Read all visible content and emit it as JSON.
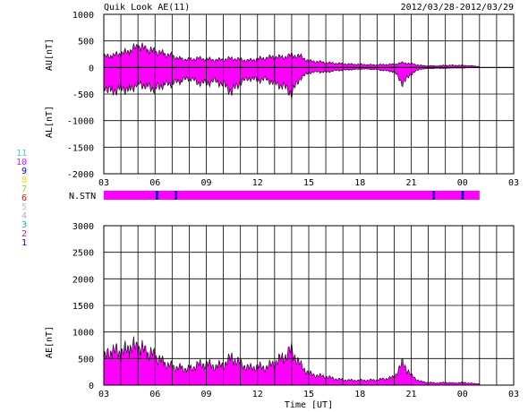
{
  "header": {
    "title": "Quik Look AE(11)",
    "date_range": "2012/03/28-2012/03/29"
  },
  "station_legend": [
    {
      "label": "11",
      "color": "#00e5ff"
    },
    {
      "label": "10",
      "color": "#ff00ff"
    },
    {
      "label": "9",
      "color": "#0000ff"
    },
    {
      "label": "8",
      "color": "#ffd700"
    },
    {
      "label": "7",
      "color": "#9acd32"
    },
    {
      "label": "6",
      "color": "#ff0000"
    },
    {
      "label": "5",
      "color": "#c0c0c0"
    },
    {
      "label": "4",
      "color": "#b0b0b0"
    },
    {
      "label": "3",
      "color": "#20b2aa"
    },
    {
      "label": "2",
      "color": "#c71585"
    },
    {
      "label": "1",
      "color": "#0000cd"
    }
  ],
  "colors": {
    "fill": "#ff00ff",
    "outline": "#000000",
    "stn_dark": "#0000cc",
    "grid": "#000000"
  },
  "chart_data": [
    {
      "type": "area",
      "panel": "AU/AL",
      "ylabel_top": "AU[nT]",
      "ylabel_bottom": "AL[nT]",
      "ylim": [
        -2000,
        1000
      ],
      "yticks": [
        "1000",
        "500",
        "0",
        "-500",
        "-1000",
        "-1500",
        "-2000"
      ],
      "xticks": [
        "03",
        "06",
        "09",
        "12",
        "15",
        "18",
        "21",
        "00",
        "03"
      ],
      "xlim_hours": [
        3,
        27
      ],
      "grid": true,
      "series": [
        {
          "x": [
            3.0,
            3.5,
            4.0,
            4.5,
            5.0,
            5.5,
            6.0,
            6.5,
            7.0,
            7.5,
            8.0,
            8.5,
            9.0,
            9.5,
            10.0,
            10.5,
            11.0,
            11.5,
            12.0,
            12.5,
            13.0,
            13.5,
            14.0,
            14.5,
            15.0,
            15.5,
            16.0,
            16.5,
            17.0,
            17.5,
            18.0,
            18.5,
            19.0,
            19.5,
            20.0,
            20.5,
            21.0,
            21.5,
            22.0,
            22.5,
            23.0,
            23.5,
            24.0,
            24.5,
            25.0
          ],
          "values": [
            200,
            220,
            260,
            300,
            400,
            340,
            300,
            260,
            220,
            160,
            150,
            170,
            160,
            140,
            150,
            170,
            150,
            130,
            160,
            180,
            200,
            190,
            230,
            210,
            120,
            110,
            90,
            80,
            70,
            60,
            60,
            50,
            50,
            55,
            60,
            90,
            70,
            40,
            30,
            30,
            40,
            40,
            40,
            30,
            20
          ]
        },
        {
          "x": [
            3.0,
            3.5,
            4.0,
            4.5,
            5.0,
            5.5,
            6.0,
            6.5,
            7.0,
            7.5,
            8.0,
            8.5,
            9.0,
            9.5,
            10.0,
            10.5,
            11.0,
            11.5,
            12.0,
            12.5,
            13.0,
            13.5,
            14.0,
            14.5,
            15.0,
            15.5,
            16.0,
            16.5,
            17.0,
            17.5,
            18.0,
            18.5,
            19.0,
            19.5,
            20.0,
            20.5,
            21.0,
            21.5,
            22.0,
            22.5,
            23.0,
            23.5,
            24.0,
            24.5,
            25.0
          ],
          "values": [
            -350,
            -450,
            -380,
            -420,
            -300,
            -350,
            -400,
            -320,
            -300,
            -250,
            -200,
            -280,
            -300,
            -250,
            -320,
            -450,
            -280,
            -200,
            -240,
            -220,
            -300,
            -350,
            -480,
            -200,
            -100,
            -80,
            -90,
            -60,
            -50,
            -40,
            -30,
            -30,
            -40,
            -60,
            -80,
            -300,
            -120,
            -30,
            -20,
            -15,
            -15,
            -10,
            -10,
            -5,
            -5
          ]
        }
      ]
    },
    {
      "type": "table",
      "panel": "N.STN",
      "label": "N.STN",
      "x_start": 3.0,
      "x_end": 25.0,
      "base_station_count": 10,
      "dips_at_hours": [
        6.1,
        7.2,
        22.3,
        24.0
      ]
    },
    {
      "type": "area",
      "panel": "AE",
      "ylabel": "AE[nT]",
      "xlabel": "Time [UT]",
      "ylim": [
        0,
        3000
      ],
      "yticks": [
        "3000",
        "2500",
        "2000",
        "1500",
        "1000",
        "500",
        "0"
      ],
      "xticks": [
        "03",
        "06",
        "09",
        "12",
        "15",
        "18",
        "21",
        "00",
        "03"
      ],
      "xlim_hours": [
        3,
        27
      ],
      "grid": true,
      "series": [
        {
          "x": [
            3.0,
            3.5,
            4.0,
            4.5,
            5.0,
            5.5,
            6.0,
            6.5,
            7.0,
            7.5,
            8.0,
            8.5,
            9.0,
            9.5,
            10.0,
            10.5,
            11.0,
            11.5,
            12.0,
            12.5,
            13.0,
            13.5,
            14.0,
            14.5,
            15.0,
            15.5,
            16.0,
            16.5,
            17.0,
            17.5,
            18.0,
            18.5,
            19.0,
            19.5,
            20.0,
            20.5,
            21.0,
            21.5,
            22.0,
            22.5,
            23.0,
            23.5,
            24.0,
            24.5,
            25.0
          ],
          "values": [
            500,
            650,
            600,
            700,
            720,
            620,
            550,
            420,
            350,
            320,
            300,
            380,
            400,
            350,
            380,
            520,
            400,
            320,
            350,
            330,
            420,
            520,
            650,
            380,
            220,
            180,
            160,
            120,
            100,
            90,
            90,
            90,
            100,
            120,
            150,
            420,
            180,
            70,
            50,
            40,
            50,
            40,
            50,
            35,
            25
          ]
        }
      ]
    }
  ]
}
